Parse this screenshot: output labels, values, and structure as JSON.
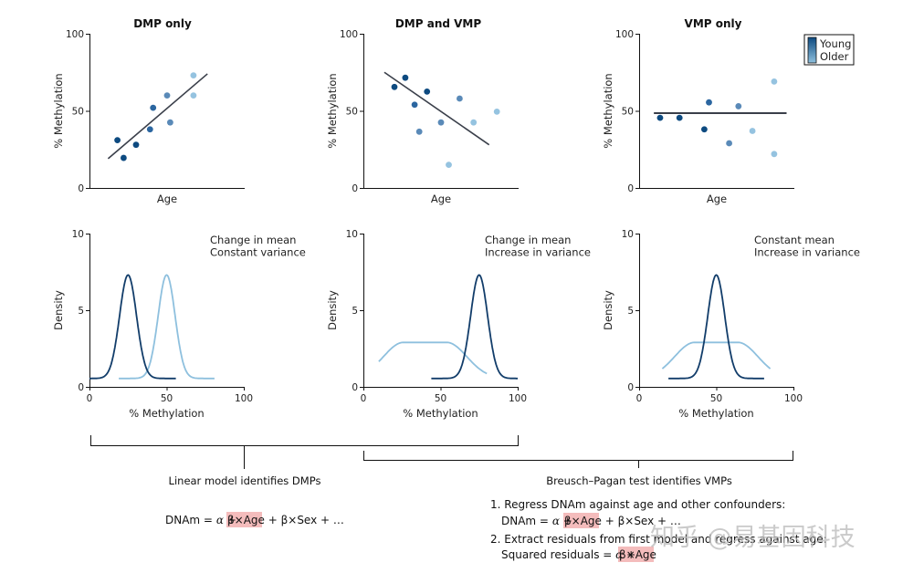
{
  "colors": {
    "young": "#0d4a80",
    "mid_young": "#2b66a0",
    "mid": "#5a8ab8",
    "mid_old": "#7aaad0",
    "older": "#95c3e0",
    "fit_line": "#3a3f4a",
    "young_curve": "#123d6a",
    "older_curve": "#8ec0de",
    "highlight": "#f4bcbc",
    "axis": "#111111"
  },
  "legend": {
    "young_label": "Young",
    "older_label": "Older"
  },
  "chart_data": [
    {
      "type": "scatter",
      "title": "DMP only",
      "xlabel": "Age",
      "ylabel": "% Methylation",
      "ylim": [
        0,
        100
      ],
      "xlim": [
        0,
        100
      ],
      "yticks": [
        "0",
        "50",
        "100"
      ],
      "note": "x-axis has no tick labels; age values are relative positions",
      "points": [
        {
          "age": 18,
          "methylation": 31,
          "group": "young"
        },
        {
          "age": 22,
          "methylation": 19.5,
          "group": "young"
        },
        {
          "age": 30,
          "methylation": 28,
          "group": "young"
        },
        {
          "age": 39,
          "methylation": 38,
          "group": "mid_young"
        },
        {
          "age": 41,
          "methylation": 52,
          "group": "mid_young"
        },
        {
          "age": 50,
          "methylation": 60,
          "group": "mid"
        },
        {
          "age": 52,
          "methylation": 42.5,
          "group": "mid"
        },
        {
          "age": 67,
          "methylation": 73,
          "group": "older"
        },
        {
          "age": 67,
          "methylation": 60,
          "group": "older"
        }
      ],
      "fit_line": {
        "x": [
          12,
          76
        ],
        "y": [
          19,
          74
        ]
      }
    },
    {
      "type": "scatter",
      "title": "DMP and VMP",
      "xlabel": "Age",
      "ylabel": "% Methylation",
      "ylim": [
        0,
        100
      ],
      "xlim": [
        0,
        100
      ],
      "yticks": [
        "0",
        "50",
        "100"
      ],
      "points": [
        {
          "age": 20,
          "methylation": 65.5,
          "group": "young"
        },
        {
          "age": 27,
          "methylation": 71.5,
          "group": "young"
        },
        {
          "age": 33,
          "methylation": 54,
          "group": "mid_young"
        },
        {
          "age": 41,
          "methylation": 62.5,
          "group": "young"
        },
        {
          "age": 36,
          "methylation": 36.5,
          "group": "mid"
        },
        {
          "age": 50,
          "methylation": 42.5,
          "group": "mid"
        },
        {
          "age": 62,
          "methylation": 58,
          "group": "mid"
        },
        {
          "age": 55,
          "methylation": 15,
          "group": "older"
        },
        {
          "age": 71,
          "methylation": 42.5,
          "group": "older"
        },
        {
          "age": 86,
          "methylation": 49.5,
          "group": "older"
        }
      ],
      "fit_line": {
        "x": [
          13.5,
          81
        ],
        "y": [
          75,
          28
        ]
      }
    },
    {
      "type": "scatter",
      "title": "VMP only",
      "xlabel": "Age",
      "ylabel": "% Methylation",
      "ylim": [
        0,
        100
      ],
      "xlim": [
        0,
        100
      ],
      "yticks": [
        "0",
        "50",
        "100"
      ],
      "points": [
        {
          "age": 13.5,
          "methylation": 45.5,
          "group": "young"
        },
        {
          "age": 26,
          "methylation": 45.5,
          "group": "young"
        },
        {
          "age": 42,
          "methylation": 38,
          "group": "young"
        },
        {
          "age": 45,
          "methylation": 55.5,
          "group": "mid_young"
        },
        {
          "age": 58,
          "methylation": 29,
          "group": "mid"
        },
        {
          "age": 64,
          "methylation": 53,
          "group": "mid"
        },
        {
          "age": 73,
          "methylation": 37,
          "group": "older"
        },
        {
          "age": 87,
          "methylation": 69,
          "group": "older"
        },
        {
          "age": 87,
          "methylation": 22,
          "group": "older"
        }
      ],
      "fit_line": {
        "x": [
          9.5,
          95
        ],
        "y": [
          48.5,
          48.5
        ]
      }
    },
    {
      "type": "line",
      "title": "",
      "annotation": [
        "Change in mean",
        "Constant variance"
      ],
      "xlabel": "% Methylation",
      "ylabel": "Density",
      "xlim": [
        0,
        100
      ],
      "ylim": [
        0,
        10
      ],
      "xticks": [
        "0",
        "50",
        "100"
      ],
      "yticks": [
        "0",
        "5",
        "10"
      ],
      "series": [
        {
          "name": "Young",
          "mean": 25,
          "peak": 7.3,
          "sd": 5.5,
          "range": [
            0,
            56
          ],
          "baseline": 0.55
        },
        {
          "name": "Older",
          "mean": 50,
          "peak": 7.3,
          "sd": 5.5,
          "range": [
            19,
            81
          ],
          "baseline": 0.55
        }
      ]
    },
    {
      "type": "line",
      "title": "",
      "annotation": [
        "Change in mean",
        "Increase in variance"
      ],
      "xlabel": "% Methylation",
      "ylabel": "Density",
      "xlim": [
        0,
        100
      ],
      "ylim": [
        0,
        10
      ],
      "xticks": [
        "0",
        "50",
        "100"
      ],
      "yticks": [
        "0",
        "5",
        "10"
      ],
      "series": [
        {
          "name": "Young",
          "mean": 75,
          "peak": 7.3,
          "sd": 5.5,
          "range": [
            44,
            100
          ],
          "baseline": 0.55
        },
        {
          "name": "Older",
          "mean": 40,
          "peak": 2.9,
          "sd": 13,
          "plateau": 14,
          "range": [
            10,
            80
          ],
          "baseline": 0.55
        }
      ]
    },
    {
      "type": "line",
      "title": "",
      "annotation": [
        "Constant mean",
        "Increase in variance"
      ],
      "xlabel": "% Methylation",
      "ylabel": "Density",
      "xlim": [
        0,
        100
      ],
      "ylim": [
        0,
        10
      ],
      "xticks": [
        "0",
        "50",
        "100"
      ],
      "yticks": [
        "0",
        "5",
        "10"
      ],
      "series": [
        {
          "name": "Young",
          "mean": 50,
          "peak": 7.3,
          "sd": 5.5,
          "range": [
            19,
            81
          ],
          "baseline": 0.55
        },
        {
          "name": "Older",
          "mean": 50,
          "peak": 2.9,
          "sd": 13,
          "plateau": 14,
          "range": [
            15,
            85
          ],
          "baseline": 0.55
        }
      ]
    }
  ],
  "bottom": {
    "left_caption": "Linear model identifies DMPs",
    "left_equation": {
      "lhs": "DNAm = ",
      "alpha": "α",
      "plus1": " + ",
      "beta_age": "β×Age",
      "rest": " + β×Sex + …"
    },
    "right_caption": "Breusch–Pagan test identifies VMPs",
    "steps": [
      {
        "text": "1. Regress DNAm against age and other confounders:",
        "equation": {
          "lhs": "DNAm = ",
          "alpha": "α",
          "plus1": " + ",
          "beta_age": "β×Age",
          "rest": " + β×Sex + …"
        }
      },
      {
        "text": "2. Extract residuals from first model and regress against age:",
        "equation": {
          "lhs": "Squared residuals = ",
          "alpha": "α",
          "plus1": " + ",
          "beta_age": "β×Age",
          "rest": ""
        }
      }
    ]
  },
  "watermark": "知乎 @易基因科技"
}
